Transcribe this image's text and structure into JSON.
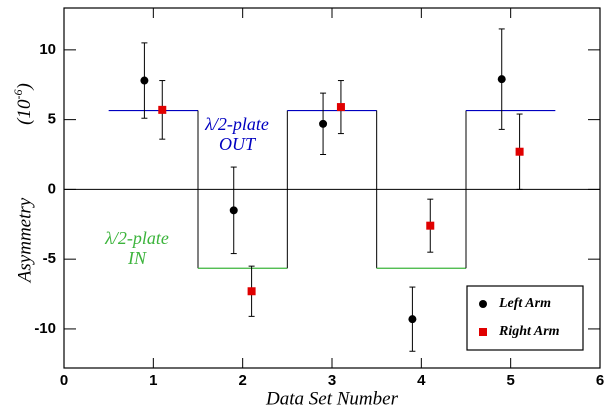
{
  "chart_data": {
    "type": "scatter",
    "xlabel": "Data Set Number",
    "ylabel": "Asymmetry",
    "ylabel_units": [
      "(10",
      "-6",
      ")"
    ],
    "xlim": [
      0,
      6
    ],
    "xticks": [
      0,
      1,
      2,
      3,
      4,
      5,
      6
    ],
    "ylim": [
      -12.8,
      13
    ],
    "yticks": [
      -10,
      -5,
      0,
      5,
      10
    ],
    "zero_line": true,
    "legend": "lower right",
    "series": [
      {
        "name": "Left Arm",
        "color": "#000000",
        "marker": "circle",
        "x": [
          0.9,
          1.9,
          2.9,
          3.9,
          4.9
        ],
        "values": [
          7.8,
          -1.5,
          4.7,
          -9.3,
          7.9
        ],
        "errors": [
          2.7,
          3.1,
          2.2,
          2.3,
          3.6
        ]
      },
      {
        "name": "Right Arm",
        "color": "#e00000",
        "marker": "square",
        "x": [
          1.1,
          2.1,
          3.1,
          4.1,
          5.1
        ],
        "values": [
          5.7,
          -7.3,
          5.9,
          -2.6,
          2.7
        ],
        "errors": [
          2.1,
          1.8,
          1.9,
          1.9,
          2.7
        ]
      }
    ],
    "steps": [
      {
        "x": [
          0.5,
          1.5
        ],
        "value": 5.65,
        "color": "#0000c0"
      },
      {
        "x": [
          1.5,
          2.5
        ],
        "value": -5.65,
        "color": "#3cb43c"
      },
      {
        "x": [
          2.5,
          3.5
        ],
        "value": 5.65,
        "color": "#0000c0"
      },
      {
        "x": [
          3.5,
          4.5
        ],
        "value": -5.65,
        "color": "#3cb43c"
      },
      {
        "x": [
          4.5,
          5.5
        ],
        "value": 5.65,
        "color": "#0000c0"
      }
    ],
    "annotations": [
      {
        "lines": [
          "λ/2-plate",
          "OUT"
        ],
        "color": "#0000c0"
      },
      {
        "lines": [
          "λ/2-plate",
          "IN"
        ],
        "color": "#3cb43c"
      }
    ]
  }
}
